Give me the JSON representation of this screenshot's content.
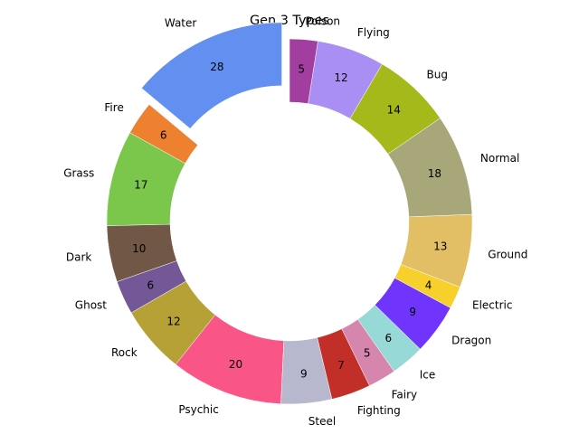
{
  "chart_data": {
    "type": "pie",
    "title": "Gen 3 Types",
    "donut": true,
    "exploded": [
      "Water"
    ],
    "slices": [
      {
        "label": "Water",
        "value": 28,
        "color": "#6390F0"
      },
      {
        "label": "Fire",
        "value": 6,
        "color": "#EE8130"
      },
      {
        "label": "Grass",
        "value": 17,
        "color": "#7AC74C"
      },
      {
        "label": "Dark",
        "value": 10,
        "color": "#705746"
      },
      {
        "label": "Ghost",
        "value": 6,
        "color": "#735797"
      },
      {
        "label": "Rock",
        "value": 12,
        "color": "#B6A136"
      },
      {
        "label": "Psychic",
        "value": 20,
        "color": "#F95587"
      },
      {
        "label": "Steel",
        "value": 9,
        "color": "#B7B7CE"
      },
      {
        "label": "Fighting",
        "value": 7,
        "color": "#C22E28"
      },
      {
        "label": "Fairy",
        "value": 5,
        "color": "#D685AD"
      },
      {
        "label": "Ice",
        "value": 6,
        "color": "#96D9D6"
      },
      {
        "label": "Dragon",
        "value": 9,
        "color": "#6F35FC"
      },
      {
        "label": "Electric",
        "value": 4,
        "color": "#F7D02C"
      },
      {
        "label": "Ground",
        "value": 13,
        "color": "#E2BF65"
      },
      {
        "label": "Normal",
        "value": 18,
        "color": "#A8A77A"
      },
      {
        "label": "Bug",
        "value": 14,
        "color": "#A6B91A"
      },
      {
        "label": "Flying",
        "value": 12,
        "color": "#A98FF3"
      },
      {
        "label": "Poison",
        "value": 5,
        "color": "#A33EA1"
      }
    ]
  }
}
